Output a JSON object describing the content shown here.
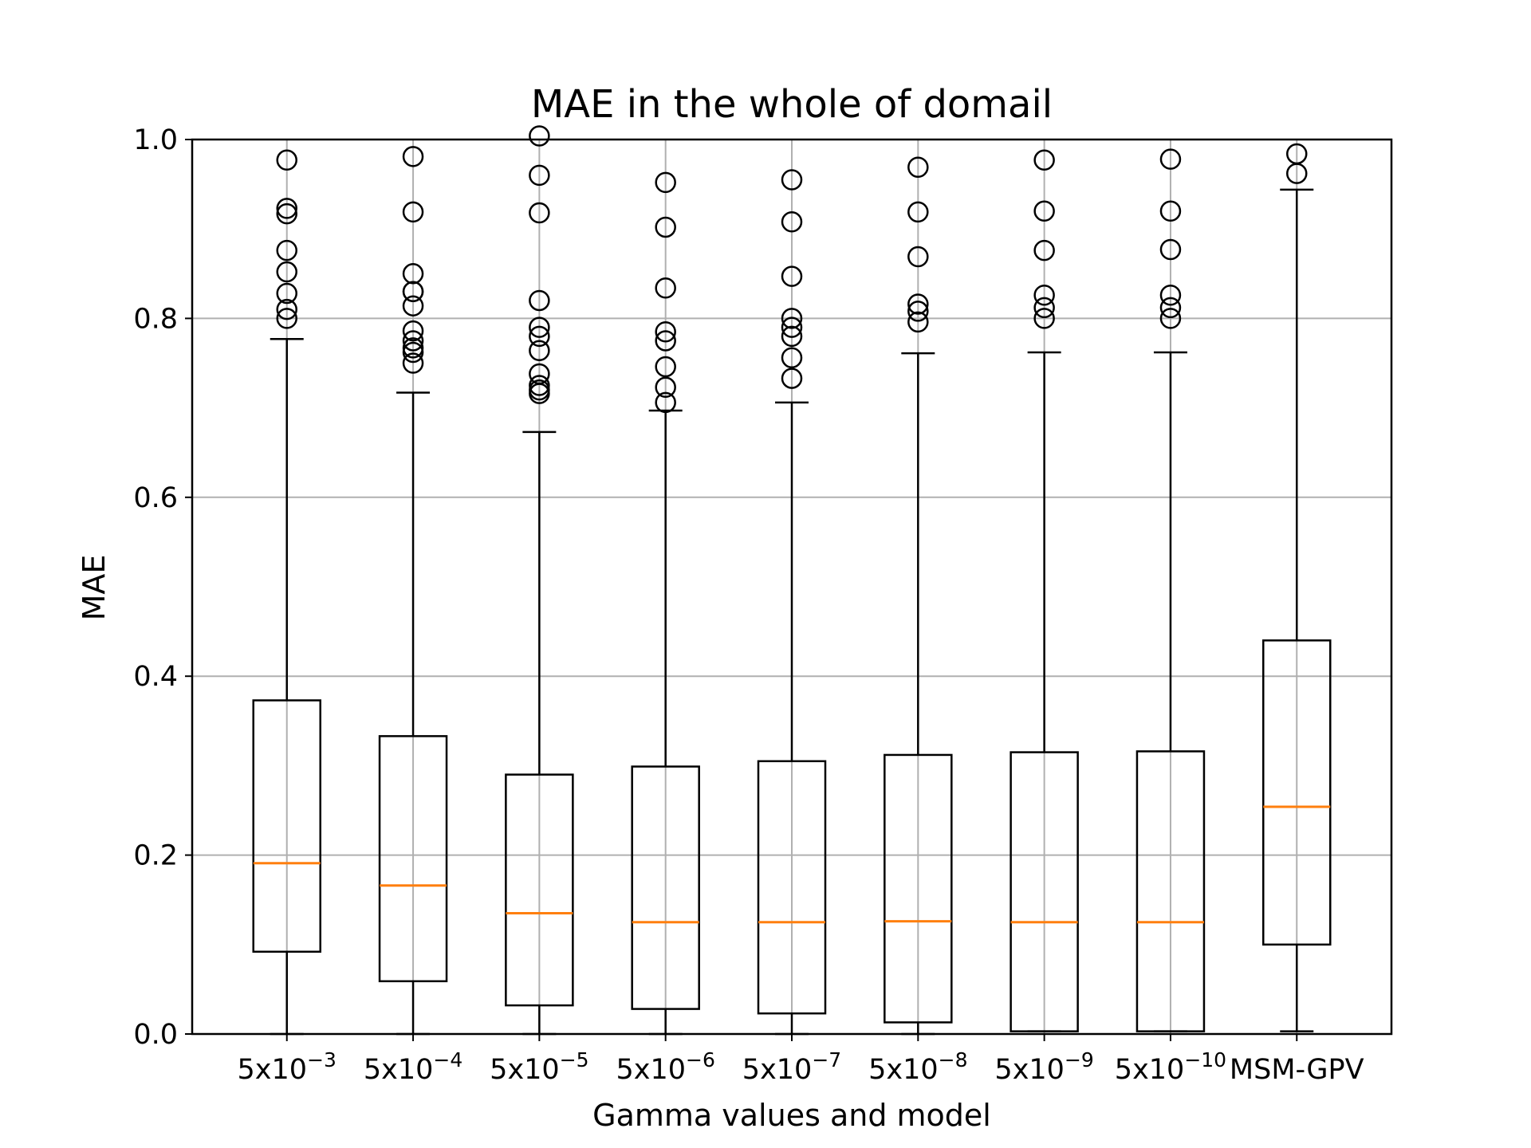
{
  "chart_data": {
    "type": "boxplot",
    "title": "MAE in the whole of domail",
    "xlabel": "Gamma values and model",
    "ylabel": "MAE",
    "ylim": [
      0,
      1.0
    ],
    "yticks": [
      "0.0",
      "0.2",
      "0.4",
      "0.6",
      "0.8",
      "1.0"
    ],
    "grid": true,
    "legend": "none",
    "colors": {
      "box": "#000000",
      "median": "#ff7f0e",
      "grid": "#b0b0b0",
      "axis": "#000000"
    },
    "categories": [
      {
        "base": "5x10",
        "exp": "−3"
      },
      {
        "base": "5x10",
        "exp": "−4"
      },
      {
        "base": "5x10",
        "exp": "−5"
      },
      {
        "base": "5x10",
        "exp": "−6"
      },
      {
        "base": "5x10",
        "exp": "−7"
      },
      {
        "base": "5x10",
        "exp": "−8"
      },
      {
        "base": "5x10",
        "exp": "−9"
      },
      {
        "base": "5x10",
        "exp": "−10"
      },
      {
        "base": "MSM-GPV",
        "exp": ""
      }
    ],
    "boxes": [
      {
        "whislo": 0.0,
        "q1": 0.092,
        "med": 0.191,
        "q3": 0.373,
        "whishi": 0.777,
        "fliers": [
          0.977,
          0.923,
          0.917,
          0.876,
          0.852,
          0.828,
          0.81,
          0.8
        ]
      },
      {
        "whislo": 0.0,
        "q1": 0.059,
        "med": 0.166,
        "q3": 0.333,
        "whishi": 0.717,
        "fliers": [
          0.981,
          0.919,
          0.85,
          0.83,
          0.83,
          0.814,
          0.786,
          0.775,
          0.767,
          0.762,
          0.75
        ]
      },
      {
        "whislo": 0.0,
        "q1": 0.032,
        "med": 0.135,
        "q3": 0.29,
        "whishi": 0.673,
        "fliers": [
          1.004,
          0.96,
          0.918,
          0.82,
          0.79,
          0.78,
          0.764,
          0.738,
          0.725,
          0.72,
          0.716
        ]
      },
      {
        "whislo": 0.0,
        "q1": 0.028,
        "med": 0.125,
        "q3": 0.299,
        "whishi": 0.697,
        "fliers": [
          0.952,
          0.902,
          0.834,
          0.785,
          0.775,
          0.746,
          0.723,
          0.706
        ]
      },
      {
        "whislo": 0.0,
        "q1": 0.023,
        "med": 0.125,
        "q3": 0.305,
        "whishi": 0.706,
        "fliers": [
          0.955,
          0.908,
          0.847,
          0.8,
          0.79,
          0.78,
          0.756,
          0.733
        ]
      },
      {
        "whislo": 0.0,
        "q1": 0.013,
        "med": 0.126,
        "q3": 0.312,
        "whishi": 0.761,
        "fliers": [
          0.969,
          0.919,
          0.869,
          0.816,
          0.808,
          0.796
        ]
      },
      {
        "whislo": 0.003,
        "q1": 0.003,
        "med": 0.125,
        "q3": 0.315,
        "whishi": 0.762,
        "fliers": [
          0.977,
          0.92,
          0.876,
          0.826,
          0.812,
          0.8
        ]
      },
      {
        "whislo": 0.003,
        "q1": 0.003,
        "med": 0.125,
        "q3": 0.316,
        "whishi": 0.762,
        "fliers": [
          0.978,
          0.92,
          0.877,
          0.826,
          0.812,
          0.8
        ]
      },
      {
        "whislo": 0.003,
        "q1": 0.1,
        "med": 0.254,
        "q3": 0.44,
        "whishi": 0.944,
        "fliers": [
          0.984,
          0.962
        ]
      }
    ]
  }
}
